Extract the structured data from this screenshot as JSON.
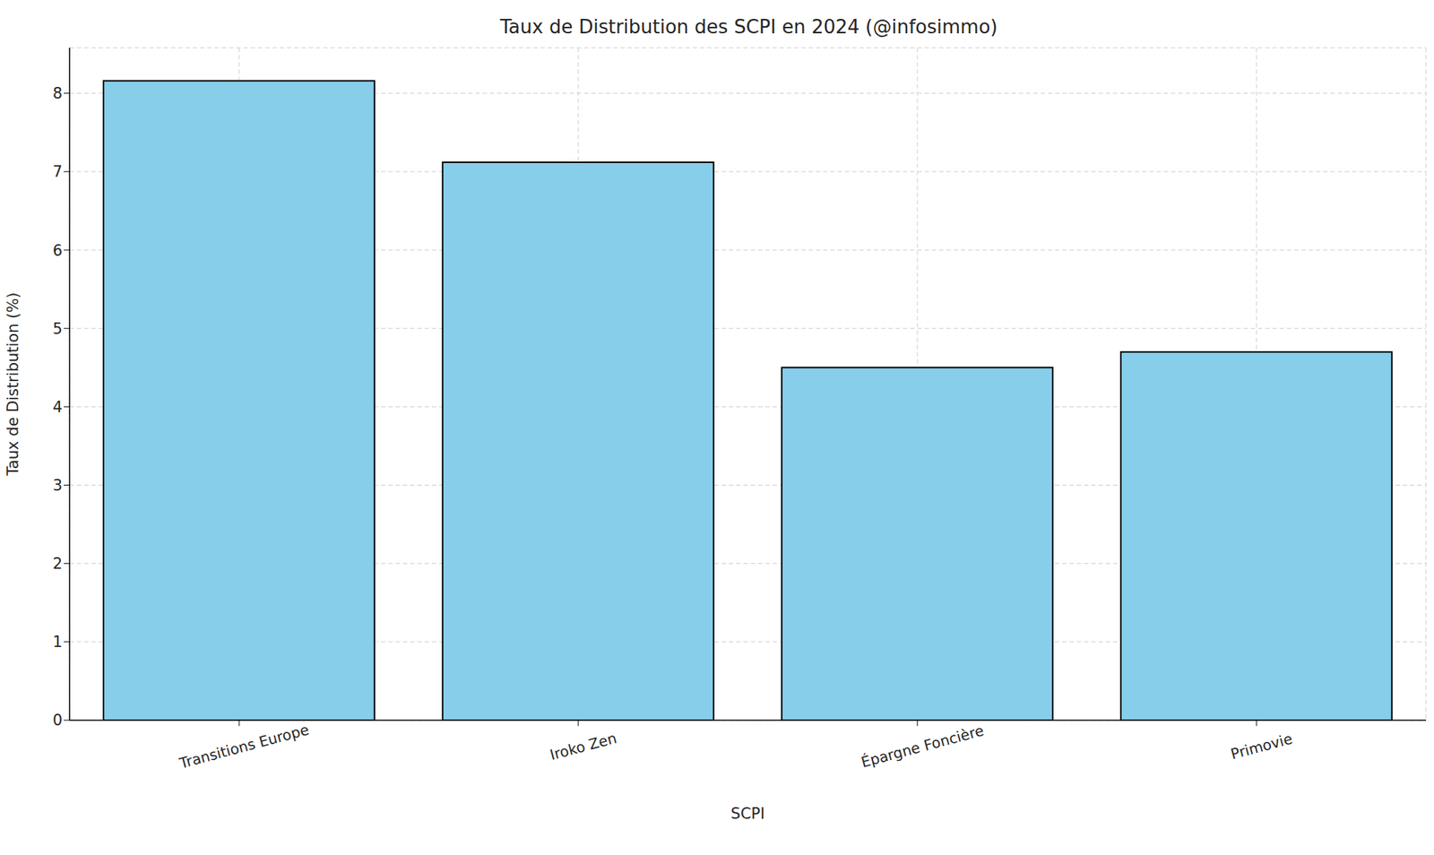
{
  "chart_data": {
    "type": "bar",
    "title": "Taux de Distribution des SCPI en 2024 (@infosimmo)",
    "xlabel": "SCPI",
    "ylabel": "Taux de Distribution (%)",
    "categories": [
      "Transitions Europe",
      "Iroko Zen",
      "Épargne Foncière",
      "Primovie"
    ],
    "values": [
      8.16,
      7.12,
      4.5,
      4.7
    ],
    "color": "#87ceeb",
    "ylim": [
      0,
      8.58
    ],
    "yticks": [
      0,
      1,
      2,
      3,
      4,
      5,
      6,
      7,
      8
    ],
    "grid": true
  }
}
